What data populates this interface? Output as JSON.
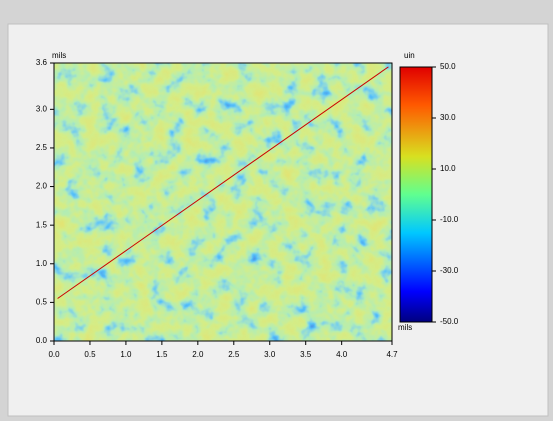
{
  "chart_data": {
    "type": "heatmap",
    "x_label": "mils",
    "y_label": "mils",
    "colorbar_label": "uin",
    "xlim": [
      0,
      4.7
    ],
    "xticks": [
      {
        "value": 0,
        "label": "0.0"
      },
      0.5,
      {
        "value": 1,
        "label": "1.0"
      },
      1.5,
      {
        "value": 2,
        "label": "2.0"
      },
      2.5,
      {
        "value": 3,
        "label": "3.0"
      },
      3.5,
      {
        "value": 4,
        "label": "4.0"
      },
      4.7
    ],
    "ylim": [
      0,
      3.6
    ],
    "yticks": [
      {
        "value": 0,
        "label": "0.0"
      },
      0.5,
      {
        "value": 1,
        "label": "1.0"
      },
      1.5,
      {
        "value": 2,
        "label": "2.0"
      },
      2.5,
      {
        "value": 3,
        "label": "3.0"
      },
      3.6
    ],
    "clim": [
      -50,
      50
    ],
    "cticks": [
      {
        "value": 50,
        "label": "50.0"
      },
      {
        "value": 30,
        "label": "30.0"
      },
      {
        "value": 10,
        "label": "10.0"
      },
      {
        "value": -10,
        "label": "-10.0"
      },
      {
        "value": -30,
        "label": "-30.0"
      },
      {
        "value": -50,
        "label": "-50.0"
      }
    ],
    "colormap": "jet",
    "profile_line": {
      "x": [
        0.05,
        4.65
      ],
      "y": [
        0.55,
        3.55
      ],
      "color": "#cc0000"
    }
  }
}
